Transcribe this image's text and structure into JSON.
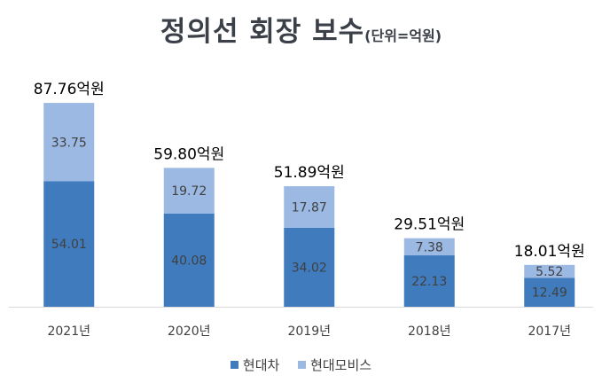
{
  "title": {
    "main": "정의선 회장 보수",
    "unit": "(단위=억원)"
  },
  "legend": {
    "items": [
      "현대차",
      "현대모비스"
    ]
  },
  "colors": {
    "hyundai_motor": "#3f7bbd",
    "hyundai_mobis": "#9bb9e3",
    "axis": "#d9d9d9",
    "value_text": "#404040",
    "total_text": "#000000"
  },
  "chart_data": {
    "type": "bar",
    "stacked": true,
    "categories": [
      "2021년",
      "2020년",
      "2019년",
      "2018년",
      "2017년"
    ],
    "series": [
      {
        "name": "현대차",
        "values": [
          54.01,
          40.08,
          34.02,
          22.13,
          12.49
        ],
        "labels": [
          "54.01",
          "40.08",
          "34.02",
          "22.13",
          "12.49"
        ]
      },
      {
        "name": "현대모비스",
        "values": [
          33.75,
          19.72,
          17.87,
          7.38,
          5.52
        ],
        "labels": [
          "33.75",
          "19.72",
          "17.87",
          "7.38",
          "5.52"
        ]
      }
    ],
    "totals": [
      "87.76억원",
      "59.80억원",
      "51.89억원",
      "29.51억원",
      "18.01억원"
    ],
    "ylim": [
      0,
      100
    ],
    "grid": false,
    "legend_position": "bottom"
  }
}
